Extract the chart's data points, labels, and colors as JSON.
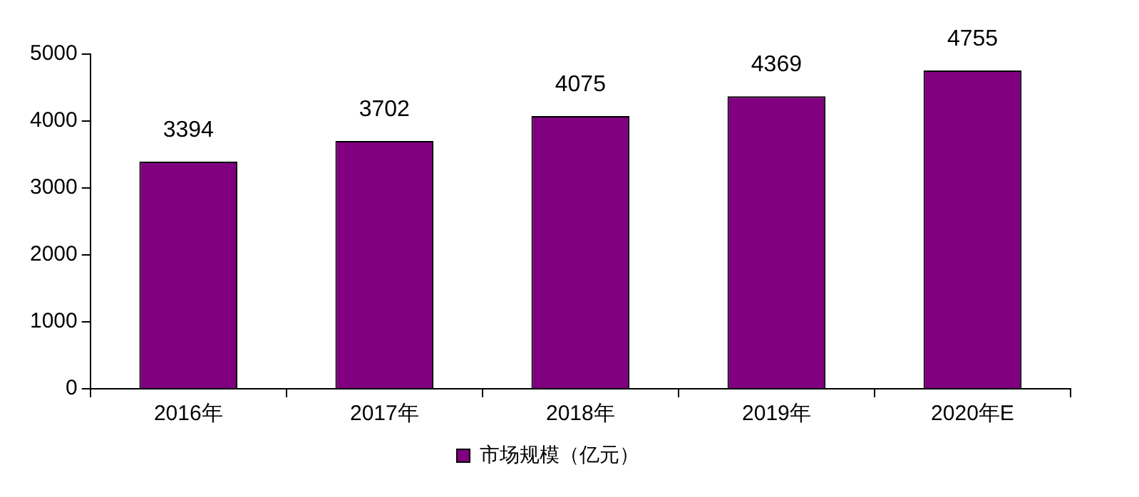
{
  "chart_data": {
    "type": "bar",
    "categories": [
      "2016年",
      "2017年",
      "2018年",
      "2019年",
      "2020年E"
    ],
    "series": [
      {
        "name": "市场规模（亿元）",
        "color": "#800080",
        "values": [
          3394,
          3702,
          4075,
          4369,
          4755
        ]
      }
    ],
    "ylim": [
      0,
      5000
    ],
    "yticks": [
      0,
      1000,
      2000,
      3000,
      4000,
      5000
    ],
    "grid": false,
    "legend": "bottom",
    "data_labels": true
  }
}
